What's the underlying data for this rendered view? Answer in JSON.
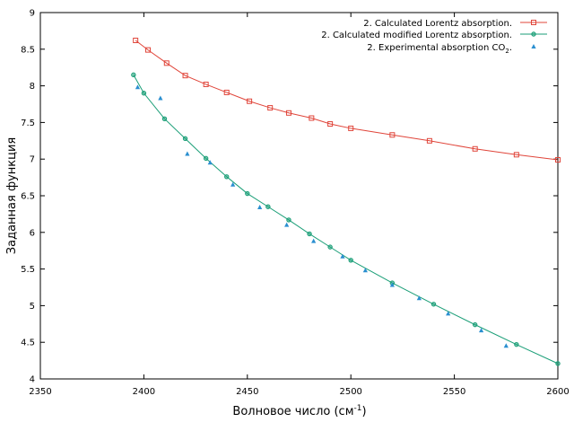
{
  "chart_data": {
    "type": "line",
    "xlabel": "Волновое число (см",
    "xlabel_sup": "-1",
    "xlabel_end": ")",
    "ylabel": "Заданная функция",
    "xlim": [
      2350,
      2600
    ],
    "ylim": [
      4,
      9
    ],
    "x_ticks": [
      2350,
      2400,
      2450,
      2500,
      2550,
      2600
    ],
    "y_ticks": [
      4,
      4.5,
      5,
      5.5,
      6,
      6.5,
      7,
      7.5,
      8,
      8.5,
      9
    ],
    "grid": false,
    "legend_position": "top-right",
    "series": [
      {
        "name": "2. Calculated Lorentz absorption.",
        "color": "#e0453a",
        "marker": "square",
        "line": true,
        "x": [
          2396,
          2402,
          2411,
          2420,
          2430,
          2440,
          2451,
          2461,
          2470,
          2481,
          2490,
          2500,
          2520,
          2538,
          2560,
          2580,
          2600
        ],
        "y": [
          8.62,
          8.49,
          8.31,
          8.14,
          8.02,
          7.91,
          7.79,
          7.7,
          7.63,
          7.56,
          7.48,
          7.42,
          7.33,
          7.25,
          7.14,
          7.06,
          6.99
        ]
      },
      {
        "name": "2. Calculated modified Lorentz absorption.",
        "color": "#1a9e77",
        "marker": "circle",
        "line": true,
        "x": [
          2395,
          2400,
          2410,
          2420,
          2430,
          2440,
          2450,
          2460,
          2470,
          2480,
          2490,
          2500,
          2520,
          2540,
          2560,
          2580,
          2600
        ],
        "y": [
          8.15,
          7.9,
          7.55,
          7.28,
          7.01,
          6.76,
          6.53,
          6.35,
          6.17,
          5.98,
          5.8,
          5.62,
          5.31,
          5.02,
          4.74,
          4.47,
          4.21
        ]
      },
      {
        "name_prefix": "2. Experimental absorption CO",
        "name_sub": "2",
        "name_suffix": ".",
        "color": "#2a8fd0",
        "marker": "triangle",
        "line": false,
        "x": [
          2397,
          2408,
          2421,
          2432,
          2443,
          2456,
          2469,
          2482,
          2496,
          2507,
          2520,
          2533,
          2547,
          2563,
          2575
        ],
        "y": [
          7.98,
          7.83,
          7.07,
          6.95,
          6.65,
          6.34,
          6.1,
          5.88,
          5.67,
          5.48,
          5.28,
          5.1,
          4.89,
          4.66,
          4.45
        ]
      }
    ]
  }
}
